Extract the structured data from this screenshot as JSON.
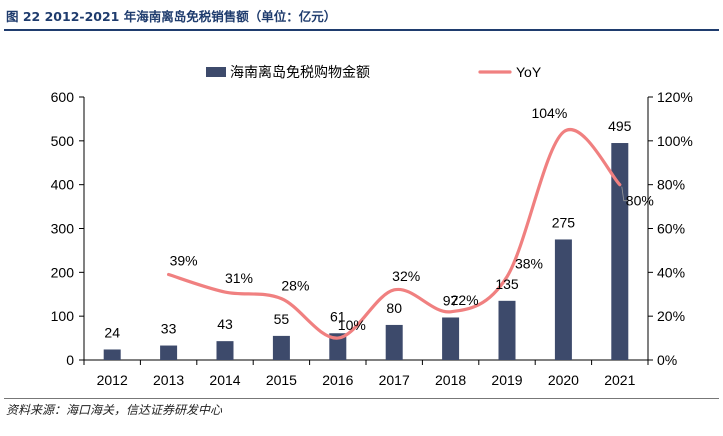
{
  "figure": {
    "title": "图 22  2012-2021 年海南离岛免税销售额（单位：亿元）",
    "source": "资料来源：海口海关，信达证券研发中心"
  },
  "chart_data": {
    "type": "bar",
    "categories": [
      "2012",
      "2013",
      "2014",
      "2015",
      "2016",
      "2017",
      "2018",
      "2019",
      "2020",
      "2021"
    ],
    "series": [
      {
        "name": "海南离岛免税购物金额",
        "kind": "bar",
        "axis": "left",
        "values": [
          24,
          33,
          43,
          55,
          61,
          80,
          97,
          135,
          275,
          495
        ],
        "labels": [
          "24",
          "33",
          "43",
          "55",
          "61",
          "80",
          "97",
          "135",
          "275",
          "495"
        ]
      },
      {
        "name": "YoY",
        "kind": "line",
        "axis": "right",
        "values": [
          null,
          39,
          31,
          28,
          10,
          32,
          22,
          38,
          104,
          80
        ],
        "labels": [
          "",
          "39%",
          "31%",
          "28%",
          "10%",
          "32%",
          "22%",
          "38%",
          "104%",
          "80%"
        ]
      }
    ],
    "y_left": {
      "min": 0,
      "max": 600,
      "ticks": [
        "0",
        "100",
        "200",
        "300",
        "400",
        "500",
        "600"
      ]
    },
    "y_right": {
      "min": 0,
      "max": 120,
      "ticks": [
        "0%",
        "20%",
        "40%",
        "60%",
        "80%",
        "100%",
        "120%"
      ]
    },
    "legend_position": "top",
    "colors": {
      "bar": "#3d4a6b",
      "line": "#f08080",
      "title": "#1f3c6e"
    }
  }
}
